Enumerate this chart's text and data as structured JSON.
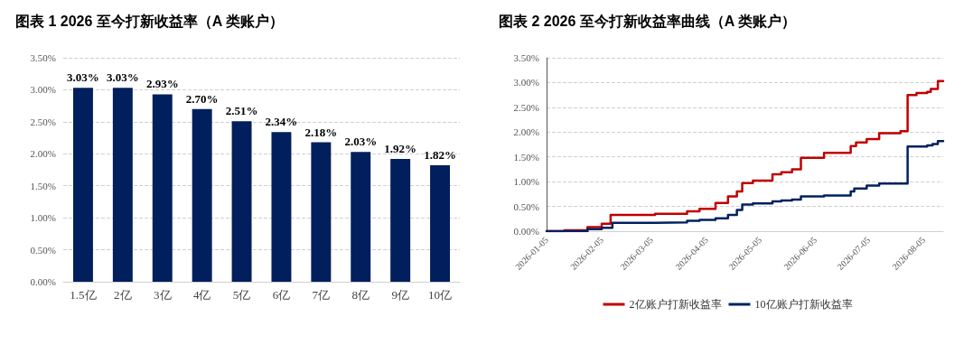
{
  "chart_data": [
    {
      "type": "bar",
      "title": "图表 1 2026 至今打新收益率（A 类账户）",
      "categories": [
        "1.5亿",
        "2亿",
        "3亿",
        "4亿",
        "5亿",
        "6亿",
        "7亿",
        "8亿",
        "9亿",
        "10亿"
      ],
      "values": [
        3.03,
        3.03,
        2.93,
        2.7,
        2.51,
        2.34,
        2.18,
        2.03,
        1.92,
        1.82
      ],
      "value_labels": [
        "3.03%",
        "3.03%",
        "2.93%",
        "2.70%",
        "2.51%",
        "2.34%",
        "2.18%",
        "2.03%",
        "1.92%",
        "1.82%"
      ],
      "color": "#001f5c",
      "ylim": [
        0,
        3.5
      ],
      "yticks": [
        {
          "value": 0,
          "label": "0.00%"
        },
        {
          "value": 0.5,
          "label": "0.50%"
        },
        {
          "value": 1,
          "label": "1.00%"
        },
        {
          "value": 1.5,
          "label": "1.50%"
        },
        {
          "value": 2,
          "label": "2.00%"
        },
        {
          "value": 2.5,
          "label": "2.50%"
        },
        {
          "value": 3,
          "label": "3.00%"
        },
        {
          "value": 3.5,
          "label": "3.50%"
        }
      ],
      "grid": "y"
    },
    {
      "type": "step",
      "title": "图表 2 2026 至今打新收益率曲线（A 类账户）",
      "series": [
        {
          "name": "2亿账户打新收益率",
          "color": "#c00000",
          "x": [
            "2026-01-05",
            "2026-01-15",
            "2026-01-28",
            "2026-02-05",
            "2026-02-10",
            "2026-03-07",
            "2026-03-25",
            "2026-04-01",
            "2026-04-10",
            "2026-04-17",
            "2026-04-22",
            "2026-04-25",
            "2026-05-01",
            "2026-05-12",
            "2026-05-17",
            "2026-05-23",
            "2026-05-28",
            "2026-06-10",
            "2026-06-25",
            "2026-06-28",
            "2026-07-04",
            "2026-07-11",
            "2026-07-23",
            "2026-07-27",
            "2026-08-01",
            "2026-08-07",
            "2026-08-09",
            "2026-08-13",
            "2026-08-16"
          ],
          "values": [
            0,
            0.02,
            0.08,
            0.15,
            0.33,
            0.35,
            0.4,
            0.45,
            0.57,
            0.7,
            0.8,
            0.97,
            1.02,
            1.15,
            1.19,
            1.25,
            1.48,
            1.58,
            1.72,
            1.79,
            1.86,
            1.98,
            2.02,
            2.75,
            2.79,
            2.81,
            2.87,
            3.03,
            3.02
          ]
        },
        {
          "name": "10亿账户打新收益率",
          "color": "#002060",
          "x": [
            "2026-01-05",
            "2026-01-28",
            "2026-02-05",
            "2026-02-11",
            "2026-03-07",
            "2026-03-25",
            "2026-04-01",
            "2026-04-10",
            "2026-04-17",
            "2026-04-22",
            "2026-04-25",
            "2026-05-01",
            "2026-05-12",
            "2026-05-17",
            "2026-05-23",
            "2026-05-28",
            "2026-06-10",
            "2026-06-25",
            "2026-06-27",
            "2026-07-04",
            "2026-07-11",
            "2026-07-27",
            "2026-08-07",
            "2026-08-10",
            "2026-08-13",
            "2026-08-16"
          ],
          "values": [
            0,
            0.04,
            0.07,
            0.17,
            0.18,
            0.21,
            0.23,
            0.26,
            0.33,
            0.43,
            0.54,
            0.56,
            0.6,
            0.62,
            0.64,
            0.7,
            0.72,
            0.8,
            0.86,
            0.92,
            0.96,
            1.71,
            1.73,
            1.76,
            1.82,
            1.82
          ]
        }
      ],
      "xlim": [
        "2026-01-05",
        "2026-08-16"
      ],
      "xticks": [
        "2026-01-05",
        "2026-02-05",
        "2026-03-05",
        "2026-04-05",
        "2026-05-05",
        "2026-06-05",
        "2026-07-05",
        "2026-08-05"
      ],
      "ylim": [
        0,
        3.5
      ],
      "yticks": [
        {
          "value": 0,
          "label": "0.00%"
        },
        {
          "value": 0.5,
          "label": "0.50%"
        },
        {
          "value": 1,
          "label": "1.00%"
        },
        {
          "value": 1.5,
          "label": "1.50%"
        },
        {
          "value": 2,
          "label": "2.00%"
        },
        {
          "value": 2.5,
          "label": "2.50%"
        },
        {
          "value": 3,
          "label": "3.00%"
        },
        {
          "value": 3.5,
          "label": "3.50%"
        }
      ],
      "grid": "y",
      "legend": "bottom"
    }
  ]
}
